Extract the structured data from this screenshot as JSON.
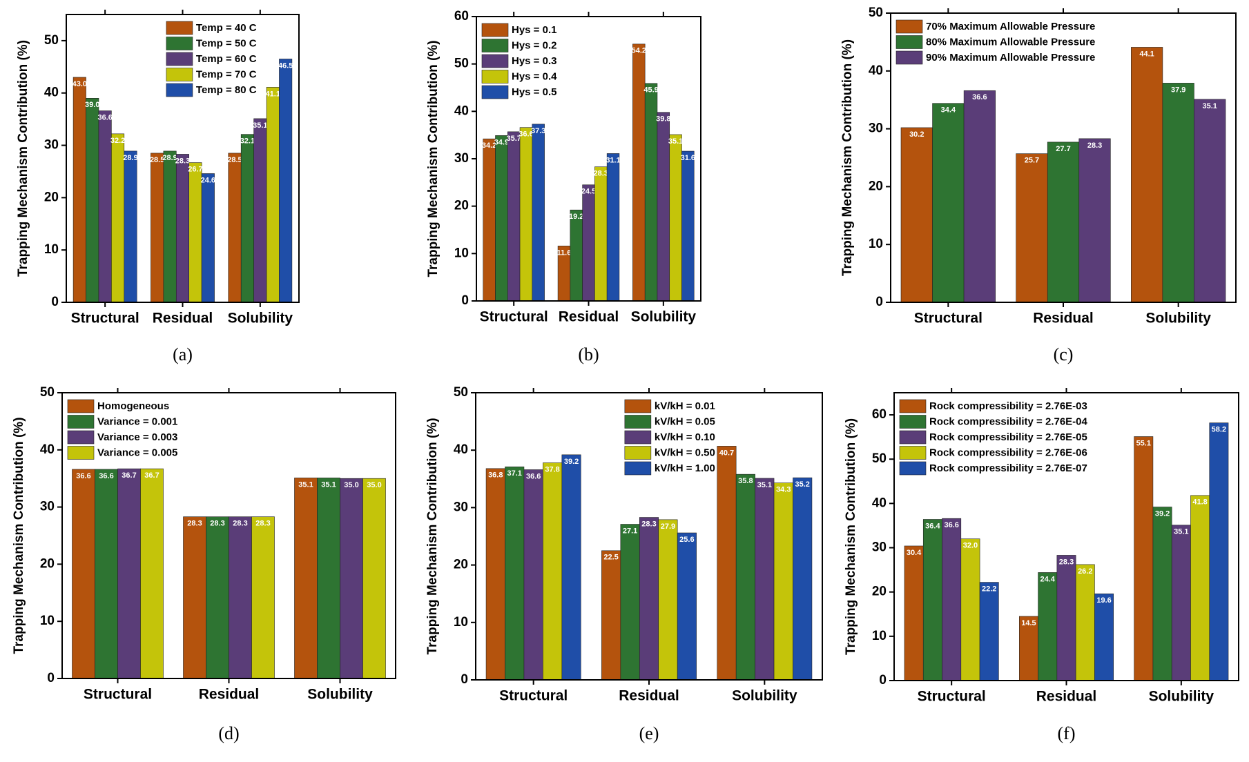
{
  "chart_data": [
    {
      "type": "bar",
      "caption": "(a)",
      "ylabel": "Trapping Mechanism Contribution (%)",
      "categories": [
        "Structural",
        "Residual",
        "Solubility"
      ],
      "ylim": [
        0,
        55
      ],
      "yticks": [
        0,
        10,
        20,
        30,
        40,
        50
      ],
      "legend": "upper center",
      "series": [
        {
          "name": "Temp = 40 C",
          "color": "#b4530d",
          "values": [
            43.0,
            28.5,
            28.5
          ],
          "value_labels": [
            "43.0",
            "28.5",
            "28.5"
          ]
        },
        {
          "name": "Temp = 50 C",
          "color": "#2e7432",
          "values": [
            39.0,
            28.9,
            32.1
          ],
          "value_labels": [
            "39.0",
            "28.9",
            "32.1"
          ]
        },
        {
          "name": "Temp = 60 C",
          "color": "#5a3d78",
          "values": [
            36.6,
            28.3,
            35.1
          ],
          "value_labels": [
            "36.6",
            "28.3",
            "35.1"
          ]
        },
        {
          "name": "Temp = 70 C",
          "color": "#c4c40a",
          "values": [
            32.2,
            26.7,
            41.1
          ],
          "value_labels": [
            "32.2",
            "26.7",
            "41.1"
          ]
        },
        {
          "name": "Temp = 80 C",
          "color": "#1f4ea8",
          "values": [
            28.9,
            24.6,
            46.5
          ],
          "value_labels": [
            "28.9",
            "24.6",
            "46.5"
          ]
        }
      ]
    },
    {
      "type": "bar",
      "caption": "(b)",
      "ylabel": "Trapping Mechanism Contribution (%)",
      "categories": [
        "Structural",
        "Residual",
        "Solubility"
      ],
      "ylim": [
        0,
        60
      ],
      "yticks": [
        0,
        10,
        20,
        30,
        40,
        50,
        60
      ],
      "legend": "upper left",
      "series": [
        {
          "name": "Hys = 0.1",
          "color": "#b4530d",
          "values": [
            34.2,
            11.6,
            54.2
          ],
          "value_labels": [
            "34.2",
            "11.6",
            "54.2"
          ]
        },
        {
          "name": "Hys = 0.2",
          "color": "#2e7432",
          "values": [
            34.9,
            19.2,
            45.9
          ],
          "value_labels": [
            "34.9",
            "19.2",
            "45.9"
          ]
        },
        {
          "name": "Hys = 0.3",
          "color": "#5a3d78",
          "values": [
            35.7,
            24.5,
            39.8
          ],
          "value_labels": [
            "35.7",
            "24.5",
            "39.8"
          ]
        },
        {
          "name": "Hys = 0.4",
          "color": "#c4c40a",
          "values": [
            36.6,
            28.3,
            35.1
          ],
          "value_labels": [
            "36.6",
            "28.3",
            "35.1"
          ]
        },
        {
          "name": "Hys = 0.5",
          "color": "#1f4ea8",
          "values": [
            37.3,
            31.1,
            31.6
          ],
          "value_labels": [
            "37.3",
            "31.1",
            "31.6"
          ]
        }
      ]
    },
    {
      "type": "bar",
      "caption": "(c)",
      "ylabel": "Trapping Mechanism Contribution (%)",
      "categories": [
        "Structural",
        "Residual",
        "Solubility"
      ],
      "ylim": [
        0,
        50
      ],
      "yticks": [
        0,
        10,
        20,
        30,
        40,
        50
      ],
      "legend": "upper left",
      "series": [
        {
          "name": "70% Maximum Allowable Pressure",
          "color": "#b4530d",
          "values": [
            30.2,
            25.7,
            44.1
          ],
          "value_labels": [
            "30.2",
            "25.7",
            "44.1"
          ]
        },
        {
          "name": "80% Maximum Allowable Pressure",
          "color": "#2e7432",
          "values": [
            34.4,
            27.7,
            37.9
          ],
          "value_labels": [
            "34.4",
            "27.7",
            "37.9"
          ]
        },
        {
          "name": "90% Maximum Allowable Pressure",
          "color": "#5a3d78",
          "values": [
            36.6,
            28.3,
            35.1
          ],
          "value_labels": [
            "36.6",
            "28.3",
            "35.1"
          ]
        }
      ]
    },
    {
      "type": "bar",
      "caption": "(d)",
      "ylabel": "Trapping Mechanism Contribution (%)",
      "categories": [
        "Structural",
        "Residual",
        "Solubility"
      ],
      "ylim": [
        0,
        50
      ],
      "yticks": [
        0,
        10,
        20,
        30,
        40,
        50
      ],
      "legend": "upper left",
      "series": [
        {
          "name": "Homogeneous",
          "color": "#b4530d",
          "values": [
            36.6,
            28.3,
            35.1
          ],
          "value_labels": [
            "36.6",
            "28.3",
            "35.1"
          ]
        },
        {
          "name": "Variance = 0.001",
          "color": "#2e7432",
          "values": [
            36.6,
            28.3,
            35.1
          ],
          "value_labels": [
            "36.6",
            "28.3",
            "35.1"
          ]
        },
        {
          "name": "Variance = 0.003",
          "color": "#5a3d78",
          "values": [
            36.7,
            28.3,
            35.0
          ],
          "value_labels": [
            "36.7",
            "28.3",
            "35.0"
          ]
        },
        {
          "name": "Variance = 0.005",
          "color": "#c4c40a",
          "values": [
            36.7,
            28.3,
            35.0
          ],
          "value_labels": [
            "36.7",
            "28.3",
            "35.0"
          ]
        }
      ]
    },
    {
      "type": "bar",
      "caption": "(e)",
      "ylabel": "Trapping Mechanism Contribution (%)",
      "categories": [
        "Structural",
        "Residual",
        "Solubility"
      ],
      "ylim": [
        0,
        50
      ],
      "yticks": [
        0,
        10,
        20,
        30,
        40,
        50
      ],
      "legend": "upper center",
      "series": [
        {
          "name": "kV/kH = 0.01",
          "color": "#b4530d",
          "values": [
            36.8,
            22.5,
            40.7
          ],
          "value_labels": [
            "36.8",
            "22.5",
            "40.7"
          ]
        },
        {
          "name": "kV/kH = 0.05",
          "color": "#2e7432",
          "values": [
            37.1,
            27.1,
            35.8
          ],
          "value_labels": [
            "37.1",
            "27.1",
            "35.8"
          ]
        },
        {
          "name": "kV/kH = 0.10",
          "color": "#5a3d78",
          "values": [
            36.6,
            28.3,
            35.1
          ],
          "value_labels": [
            "36.6",
            "28.3",
            "35.1"
          ]
        },
        {
          "name": "kV/kH = 0.50",
          "color": "#c4c40a",
          "values": [
            37.8,
            27.9,
            34.3
          ],
          "value_labels": [
            "37.8",
            "27.9",
            "34.3"
          ]
        },
        {
          "name": "kV/kH = 1.00",
          "color": "#1f4ea8",
          "values": [
            39.2,
            25.6,
            35.2
          ],
          "value_labels": [
            "39.2",
            "25.6",
            "35.2"
          ]
        }
      ]
    },
    {
      "type": "bar",
      "caption": "(f)",
      "ylabel": "Trapping Mechanism Contribution (%)",
      "categories": [
        "Structural",
        "Residual",
        "Solubility"
      ],
      "ylim": [
        0,
        65
      ],
      "yticks": [
        0,
        10,
        20,
        30,
        40,
        50,
        60
      ],
      "legend": "upper left",
      "series": [
        {
          "name": "Rock compressibility = 2.76E-03",
          "color": "#b4530d",
          "values": [
            30.4,
            14.5,
            55.1
          ],
          "value_labels": [
            "30.4",
            "14.5",
            "55.1"
          ]
        },
        {
          "name": "Rock compressibility = 2.76E-04",
          "color": "#2e7432",
          "values": [
            36.4,
            24.4,
            39.2
          ],
          "value_labels": [
            "36.4",
            "24.4",
            "39.2"
          ]
        },
        {
          "name": "Rock compressibility = 2.76E-05",
          "color": "#5a3d78",
          "values": [
            36.6,
            28.3,
            35.1
          ],
          "value_labels": [
            "36.6",
            "28.3",
            "35.1"
          ]
        },
        {
          "name": "Rock compressibility = 2.76E-06",
          "color": "#c4c40a",
          "values": [
            32.0,
            26.2,
            41.8
          ],
          "value_labels": [
            "32.0",
            "26.2",
            "41.8"
          ]
        },
        {
          "name": "Rock compressibility = 2.76E-07",
          "color": "#1f4ea8",
          "values": [
            22.2,
            19.6,
            58.2
          ],
          "value_labels": [
            "22.2",
            "19.6",
            "58.2"
          ]
        }
      ]
    }
  ]
}
